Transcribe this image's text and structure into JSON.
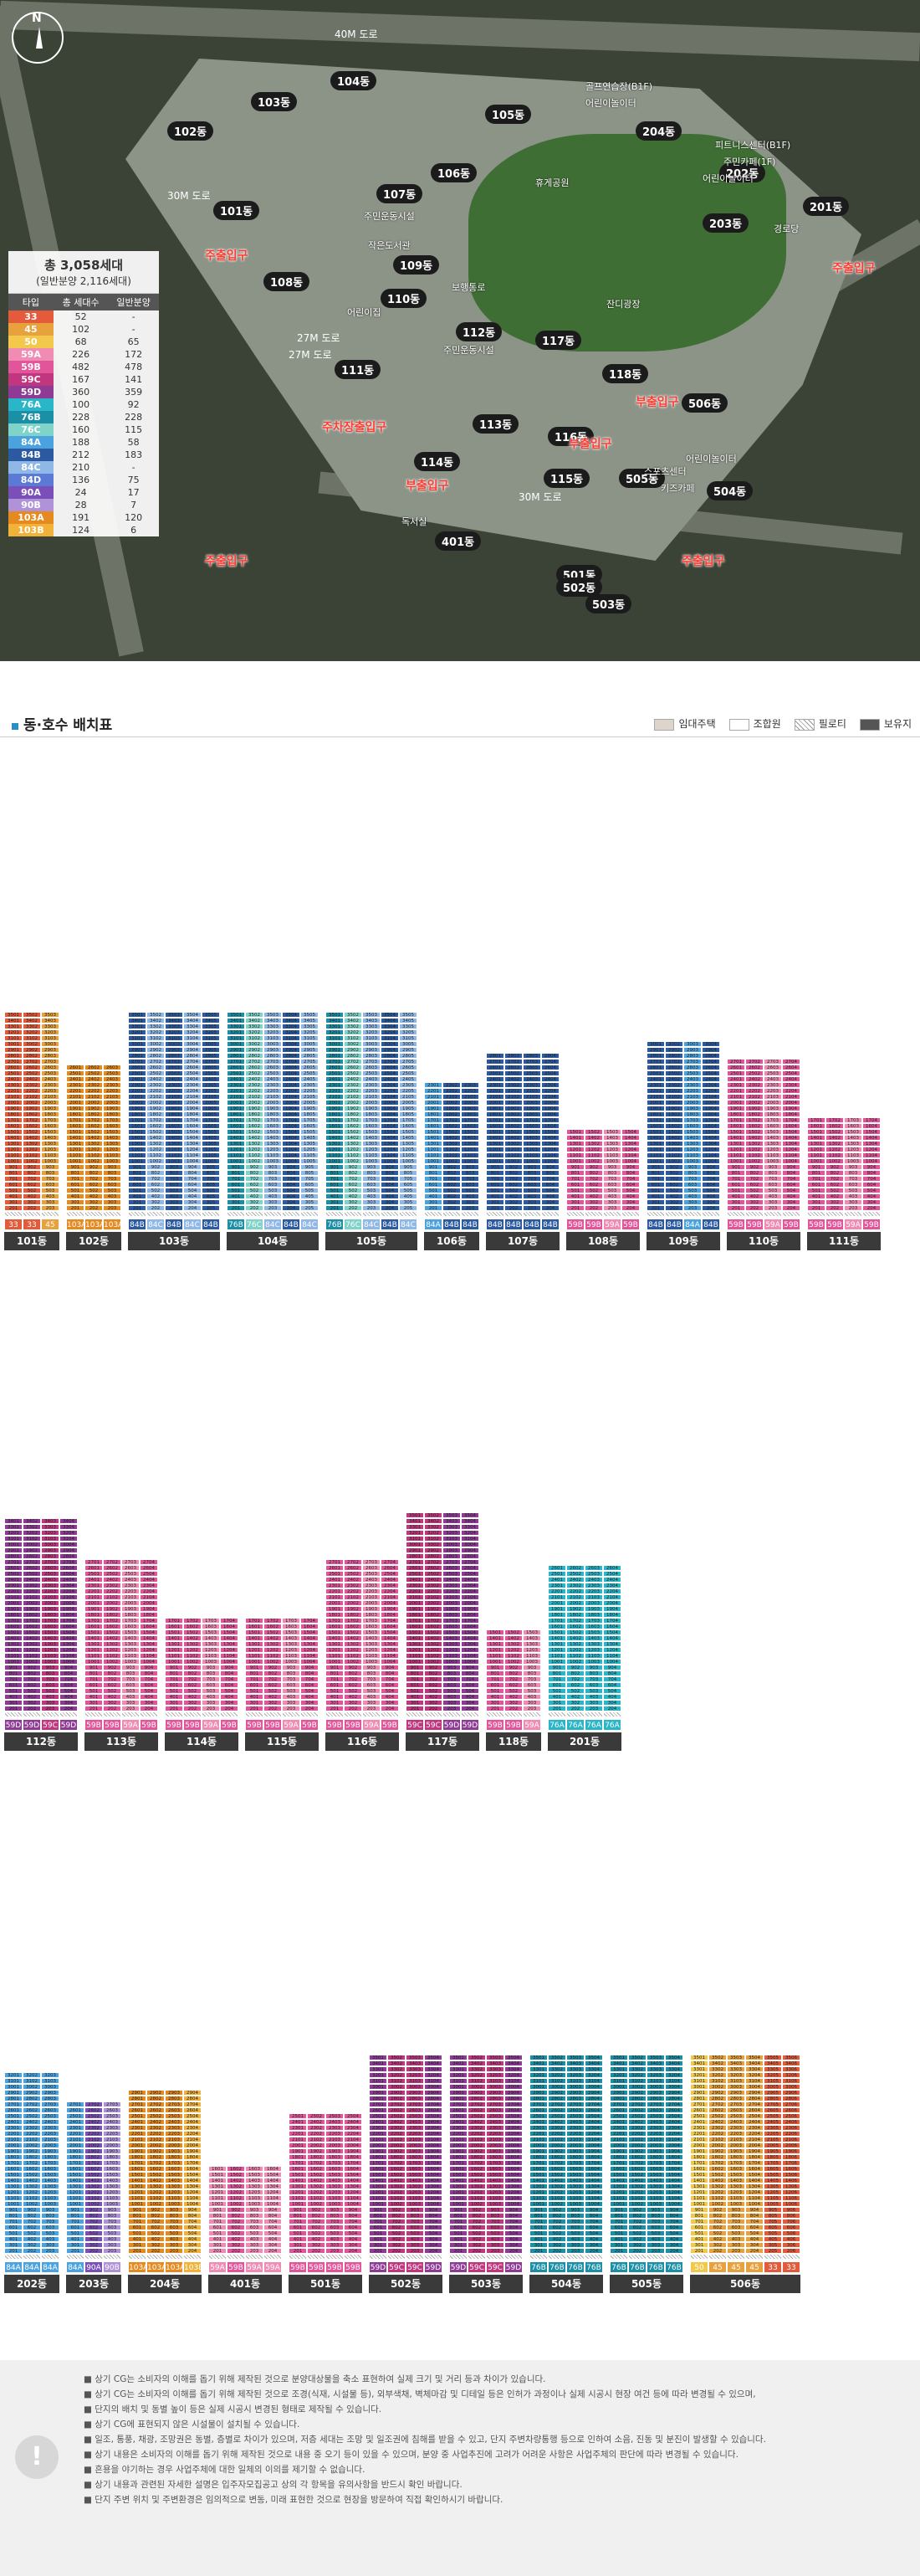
{
  "map": {
    "compass": "N",
    "total_title": "총 3,058세대",
    "total_sub": "(일반분양 2,116세대)",
    "table_header": [
      "타입",
      "총 세대수",
      "일반분양"
    ],
    "types": [
      {
        "type": "33",
        "total": "52",
        "general": "-",
        "color": "#e35b3a"
      },
      {
        "type": "45",
        "total": "102",
        "general": "-",
        "color": "#e8a13c"
      },
      {
        "type": "50",
        "total": "68",
        "general": "65",
        "color": "#f2c94c"
      },
      {
        "type": "59A",
        "total": "226",
        "general": "172",
        "color": "#f08cb4"
      },
      {
        "type": "59B",
        "total": "482",
        "general": "478",
        "color": "#e3559a"
      },
      {
        "type": "59C",
        "total": "167",
        "general": "141",
        "color": "#c0367f"
      },
      {
        "type": "59D",
        "total": "360",
        "general": "359",
        "color": "#8f3b95"
      },
      {
        "type": "76A",
        "total": "100",
        "general": "92",
        "color": "#29b6c8"
      },
      {
        "type": "76B",
        "total": "228",
        "general": "228",
        "color": "#1b8fa6"
      },
      {
        "type": "76C",
        "total": "160",
        "general": "115",
        "color": "#7fd3c9"
      },
      {
        "type": "84A",
        "total": "188",
        "general": "58",
        "color": "#4aa3df"
      },
      {
        "type": "84B",
        "total": "212",
        "general": "183",
        "color": "#2c5aa0"
      },
      {
        "type": "84C",
        "total": "210",
        "general": "-",
        "color": "#8fb8e6"
      },
      {
        "type": "84D",
        "total": "136",
        "general": "75",
        "color": "#5b7ad6"
      },
      {
        "type": "90A",
        "total": "24",
        "general": "17",
        "color": "#7b4fb8"
      },
      {
        "type": "90B",
        "total": "28",
        "general": "7",
        "color": "#b092d9"
      },
      {
        "type": "103A",
        "total": "191",
        "general": "120",
        "color": "#e58a1f"
      },
      {
        "type": "103B",
        "total": "124",
        "general": "6",
        "color": "#f2b23a"
      }
    ],
    "roads": [
      "40M 도로",
      "30M 도로",
      "27M 도로",
      "30M 도로",
      "27M 도로"
    ],
    "entrances": [
      "주출입구",
      "주출입구",
      "부출입구",
      "부출입구",
      "주차장출입구",
      "부출입구",
      "주출입구",
      "주출입구"
    ],
    "buildings": [
      "101동",
      "102동",
      "103동",
      "104동",
      "105동",
      "106동",
      "107동",
      "108동",
      "109동",
      "110동",
      "111동",
      "112동",
      "113동",
      "114동",
      "115동",
      "116동",
      "117동",
      "118동",
      "201동",
      "202동",
      "203동",
      "204동",
      "401동",
      "501동",
      "502동",
      "503동",
      "504동",
      "505동",
      "506동"
    ],
    "facilities": [
      "골프연습장(B1F)",
      "어린이놀이터",
      "피트니스센터(B1F)",
      "주민카페(1F)",
      "어린이놀이터",
      "경로당",
      "주민운동시설",
      "작은도서관",
      "어린이집",
      "휴게공원",
      "잔디광장",
      "보행통로",
      "주민운동시설",
      "어린이놀이터",
      "스포츠센터",
      "키즈카페",
      "독서실"
    ]
  },
  "section": {
    "title": "동·호수 배치표",
    "legend": [
      "임대주택",
      "조합원",
      "필로티",
      "보유지"
    ]
  },
  "towers": [
    {
      "name": "101동",
      "floors": 35,
      "cols": [
        "33",
        "33",
        "45"
      ]
    },
    {
      "name": "102동",
      "floors": 26,
      "cols": [
        "103A",
        "103A",
        "103A"
      ]
    },
    {
      "name": "103동",
      "floors": 35,
      "cols": [
        "84B",
        "84C",
        "84B",
        "84C",
        "84B"
      ]
    },
    {
      "name": "104동",
      "floors": 35,
      "cols": [
        "76B",
        "76C",
        "84C",
        "84B",
        "84C"
      ]
    },
    {
      "name": "105동",
      "floors": 35,
      "cols": [
        "76B",
        "76C",
        "84C",
        "84B",
        "84C"
      ]
    },
    {
      "name": "106동",
      "floors": 23,
      "cols": [
        "84A",
        "84B",
        "84B"
      ]
    },
    {
      "name": "107동",
      "floors": 28,
      "cols": [
        "84B",
        "84B",
        "84B",
        "84B"
      ]
    },
    {
      "name": "108동",
      "floors": 15,
      "cols": [
        "59B",
        "59B",
        "59A",
        "59B"
      ]
    },
    {
      "name": "109동",
      "floors": 30,
      "cols": [
        "84B",
        "84B",
        "84A",
        "84B"
      ]
    },
    {
      "name": "110동",
      "floors": 27,
      "cols": [
        "59B",
        "59B",
        "59A",
        "59B"
      ]
    },
    {
      "name": "111동",
      "floors": 17,
      "cols": [
        "59B",
        "59B",
        "59A",
        "59B"
      ]
    },
    {
      "name": "112동",
      "floors": 34,
      "cols": [
        "59D",
        "59D",
        "59C",
        "59D"
      ]
    },
    {
      "name": "113동",
      "floors": 27,
      "cols": [
        "59B",
        "59B",
        "59A",
        "59B"
      ]
    },
    {
      "name": "114동",
      "floors": 17,
      "cols": [
        "59B",
        "59B",
        "59A",
        "59B"
      ]
    },
    {
      "name": "115동",
      "floors": 17,
      "cols": [
        "59B",
        "59B",
        "59A",
        "59B"
      ]
    },
    {
      "name": "116동",
      "floors": 27,
      "cols": [
        "59B",
        "59B",
        "59A",
        "59B"
      ]
    },
    {
      "name": "117동",
      "floors": 35,
      "cols": [
        "59C",
        "59C",
        "59D",
        "59D"
      ]
    },
    {
      "name": "118동",
      "floors": 15,
      "cols": [
        "59B",
        "59B",
        "59A"
      ]
    },
    {
      "name": "201동",
      "floors": 26,
      "cols": [
        "76A",
        "76A",
        "76A",
        "76A"
      ]
    },
    {
      "name": "202동",
      "floors": 32,
      "cols": [
        "84A",
        "84A",
        "84A"
      ]
    },
    {
      "name": "203동",
      "floors": 27,
      "cols": [
        "84A",
        "90A",
        "90B"
      ]
    },
    {
      "name": "204동",
      "floors": 29,
      "cols": [
        "103A",
        "103A",
        "103A",
        "103B"
      ]
    },
    {
      "name": "401동",
      "floors": 16,
      "cols": [
        "59A",
        "59B",
        "59A",
        "59A"
      ]
    },
    {
      "name": "501동",
      "floors": 25,
      "cols": [
        "59B",
        "59B",
        "59B",
        "59B"
      ]
    },
    {
      "name": "502동",
      "floors": 35,
      "cols": [
        "59D",
        "59C",
        "59C",
        "59D"
      ]
    },
    {
      "name": "503동",
      "floors": 35,
      "cols": [
        "59D",
        "59C",
        "59C",
        "59D"
      ]
    },
    {
      "name": "504동",
      "floors": 35,
      "cols": [
        "76B",
        "76B",
        "76B",
        "76B"
      ]
    },
    {
      "name": "505동",
      "floors": 35,
      "cols": [
        "76B",
        "76B",
        "76B",
        "76B"
      ]
    },
    {
      "name": "506동",
      "floors": 35,
      "cols": [
        "50",
        "45",
        "45",
        "45",
        "33",
        "33"
      ]
    }
  ],
  "notes": [
    "상기 CG는 소비자의 이해를 돕기 위해 제작된 것으로 분양대상물을 축소 표현하여 실제 크기 및 거리 등과 차이가 있습니다.",
    "상기 CG는 소비자의 이해를 돕기 위해 제작된 것으로 조경(식재, 시설물 등), 외부색채, 벽체마감 및 디테일 등은 인허가 과정이나 실제 시공시 현장 여건 등에 따라 변경될 수 있으며,",
    "단지의 배치 및 동별 높이 등은 실제 시공시 변경된 형태로 제작될 수 있습니다.",
    "상기 CG에 표현되지 않은 시설물이 설치될 수 있습니다.",
    "일조, 통풍, 채광, 조망권은 동별, 층별로 차이가 있으며, 저층 세대는 조망 및 일조권에 침해를 받을 수 있고, 단지 주변차량통행 등으로 인하여 소음, 진동 및 분진이 발생할 수 있습니다.",
    "상기 내용은 소비자의 이해를 돕기 위해 제작된 것으로 내용 중 오기 등이 있을 수 있으며, 분양 중 사업추진에 고려가 어려운 사항은 사업주체의 판단에 따라 변경될 수 있습니다.",
    "흔용을 야기하는 경우 사업주체에 대한 일체의 이의를 제기할 수 없습니다.",
    "상기 내용과 관련된 자세한 설명은 입주자모집공고 상의 각 항목을 유의사항을 반드시 확인 바랍니다.",
    "단지 주변 위치 및 주변환경은 임의적으로 변동, 미래 표현한 것으로 현장을 방문하여 직접 확인하시기 바랍니다."
  ]
}
